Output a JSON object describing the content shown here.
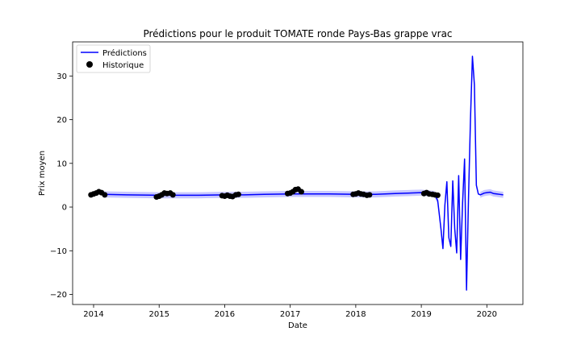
{
  "chart_data": {
    "type": "line",
    "title": "Prédictions pour le produit TOMATE ronde Pays-Bas grappe vrac",
    "xlabel": "Date",
    "ylabel": "Prix moyen",
    "xlim": [
      2013.68,
      2020.55
    ],
    "ylim": [
      -22.3,
      37.8
    ],
    "x_ticks": [
      2014,
      2015,
      2016,
      2017,
      2018,
      2019,
      2020
    ],
    "x_tick_labels": [
      "2014",
      "2015",
      "2016",
      "2017",
      "2018",
      "2019",
      "2020"
    ],
    "y_ticks": [
      -20,
      -10,
      0,
      10,
      20,
      30
    ],
    "y_tick_labels": [
      "−20",
      "−10",
      "0",
      "10",
      "20",
      "30"
    ],
    "grid": false,
    "legend": {
      "position": "top-left",
      "entries": [
        "Prédictions",
        "Historique"
      ]
    },
    "colors": {
      "prediction": "#0000ff",
      "band": "#c8c8ff",
      "historique": "#000000"
    },
    "series": [
      {
        "name": "Prédictions",
        "kind": "line",
        "x": [
          2014.15,
          2014.5,
          2015.0,
          2015.3,
          2015.6,
          2016.0,
          2016.3,
          2016.6,
          2017.0,
          2017.3,
          2017.6,
          2018.0,
          2018.3,
          2018.6,
          2019.0,
          2019.2,
          2019.25,
          2019.3,
          2019.33,
          2019.36,
          2019.39,
          2019.42,
          2019.45,
          2019.48,
          2019.51,
          2019.54,
          2019.57,
          2019.6,
          2019.63,
          2019.66,
          2019.69,
          2019.72,
          2019.75,
          2019.78,
          2019.81,
          2019.84,
          2019.87,
          2019.9,
          2019.93,
          2019.96,
          2020.0,
          2020.05,
          2020.1,
          2020.15,
          2020.2,
          2020.25
        ],
        "y": [
          2.9,
          2.8,
          2.7,
          2.7,
          2.7,
          2.8,
          2.8,
          2.9,
          3.0,
          3.0,
          3.0,
          2.9,
          2.9,
          3.1,
          3.3,
          3.0,
          1.5,
          -5.0,
          -9.5,
          0.5,
          5.8,
          -7.0,
          -9.0,
          6.0,
          -5.0,
          -10.5,
          7.2,
          -12.0,
          1.0,
          11.0,
          -19.0,
          2.0,
          20.0,
          34.5,
          28.0,
          5.0,
          3.0,
          2.8,
          3.0,
          3.2,
          3.3,
          3.4,
          3.1,
          3.0,
          2.9,
          2.8
        ]
      },
      {
        "name": "Historique",
        "kind": "scatter",
        "x": [
          2013.96,
          2014.0,
          2014.04,
          2014.08,
          2014.12,
          2014.17,
          2014.96,
          2015.0,
          2015.04,
          2015.08,
          2015.12,
          2015.17,
          2015.21,
          2015.96,
          2016.0,
          2016.04,
          2016.08,
          2016.12,
          2016.17,
          2016.21,
          2016.96,
          2017.0,
          2017.04,
          2017.08,
          2017.12,
          2017.17,
          2017.96,
          2018.0,
          2018.04,
          2018.08,
          2018.12,
          2018.17,
          2018.21,
          2019.04,
          2019.08,
          2019.12,
          2019.17,
          2019.21,
          2019.25
        ],
        "y": [
          2.8,
          3.0,
          3.2,
          3.5,
          3.3,
          2.8,
          2.3,
          2.5,
          2.8,
          3.2,
          3.1,
          3.2,
          2.8,
          2.6,
          2.5,
          2.7,
          2.5,
          2.4,
          2.8,
          2.9,
          3.1,
          3.2,
          3.5,
          4.0,
          4.1,
          3.5,
          2.9,
          3.0,
          3.2,
          3.0,
          2.9,
          2.7,
          2.8,
          3.1,
          3.3,
          3.0,
          2.9,
          2.8,
          2.7
        ]
      }
    ]
  }
}
